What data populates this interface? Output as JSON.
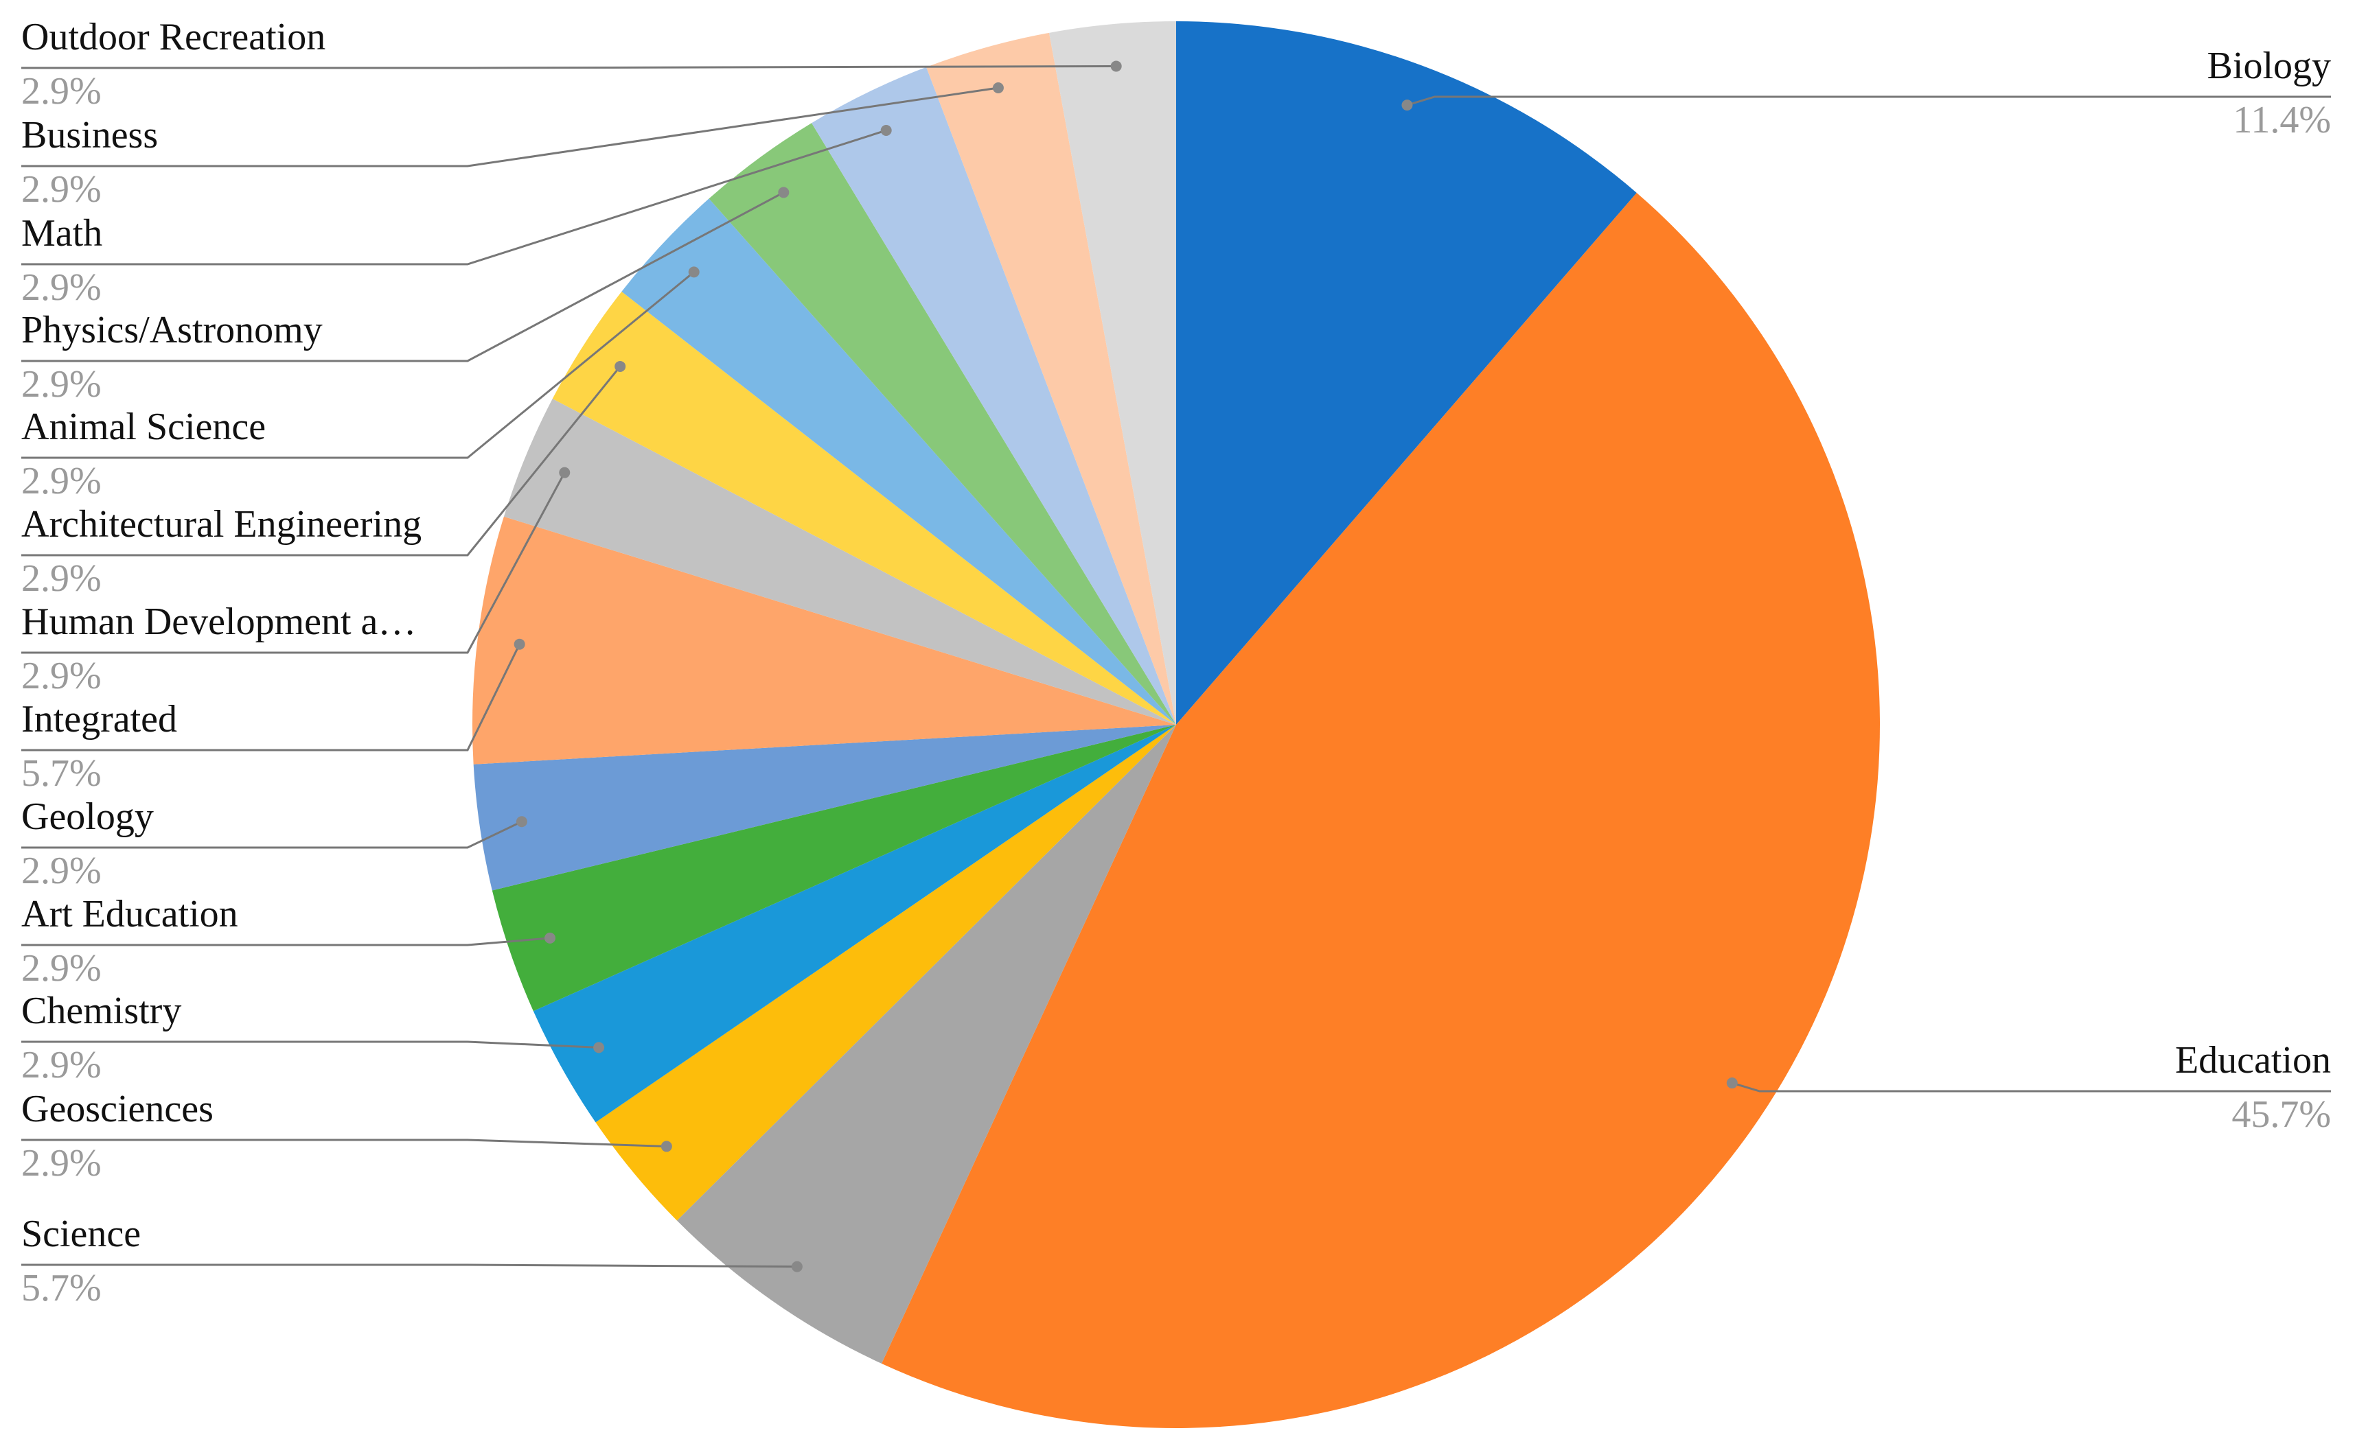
{
  "chart_data": {
    "type": "pie",
    "categories": [
      "Biology",
      "Education",
      "Science",
      "Geosciences",
      "Chemistry",
      "Art Education",
      "Geology",
      "Integrated",
      "Human Development a…",
      "Architectural Engineering",
      "Animal Science",
      "Physics/Astronomy",
      "Math",
      "Business",
      "Outdoor Recreation"
    ],
    "values": [
      11.4,
      45.7,
      5.7,
      2.9,
      2.9,
      2.9,
      2.9,
      5.7,
      2.9,
      2.9,
      2.9,
      2.9,
      2.9,
      2.9,
      2.9
    ],
    "value_labels": [
      "11.4%",
      "45.7%",
      "5.7%",
      "2.9%",
      "2.9%",
      "2.9%",
      "2.9%",
      "5.7%",
      "2.9%",
      "2.9%",
      "2.9%",
      "2.9%",
      "2.9%",
      "2.9%",
      "2.9%"
    ],
    "colors": [
      "#1772c8",
      "#fe7f26",
      "#a6a6a6",
      "#fdbd0b",
      "#1a98d9",
      "#43ae3c",
      "#6c9bd6",
      "#fea56a",
      "#c2c2c2",
      "#fed545",
      "#7ab8e6",
      "#88c879",
      "#aec8ea",
      "#fdcaa8",
      "#dadada"
    ]
  }
}
